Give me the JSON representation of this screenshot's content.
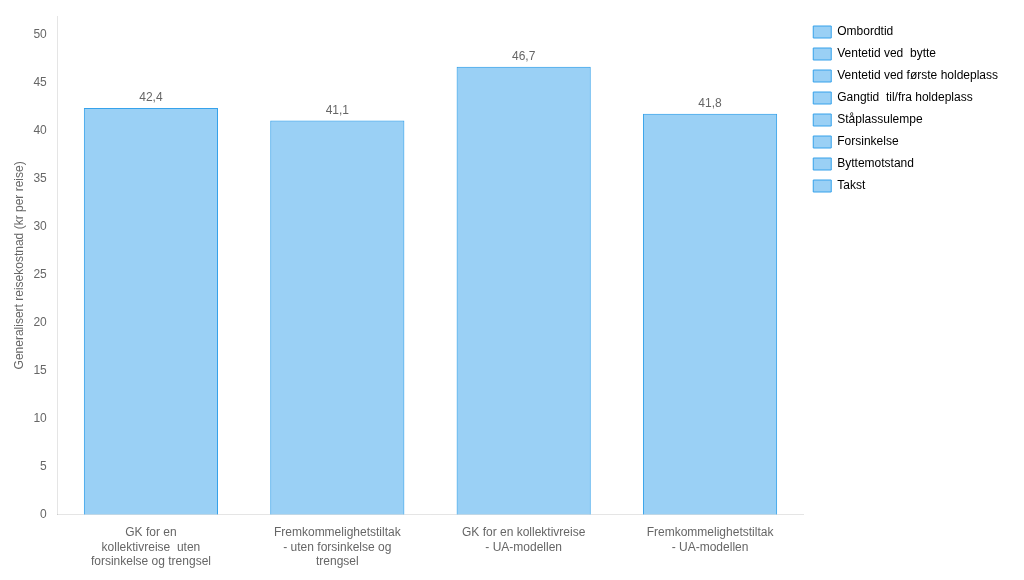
{
  "chart_data": {
    "type": "bar",
    "categories": [
      "GK for en\nkollektivreise  uten\nforsinkelse og trengsel",
      "Fremkommelighetstiltak\n- uten forsinkelse og\ntrengsel",
      "GK for en kollektivreise\n- UA-modellen",
      "Fremkommelighetstiltak\n- UA-modellen"
    ],
    "values": [
      42.4,
      41.1,
      46.7,
      41.8
    ],
    "value_labels": [
      "42,4",
      "41,1",
      "46,7",
      "41,8"
    ],
    "data_labels": true,
    "y_label": "Generalisert reisekostnad (kr per reise)",
    "ylim": [
      0,
      52
    ],
    "yticks": [
      0,
      5,
      10,
      15,
      20,
      25,
      30,
      35,
      40,
      45,
      50
    ],
    "grid": false,
    "legend": "right",
    "legend_entries": [
      "Ombordtid",
      "Ventetid ved  bytte",
      "Ventetid ved første holdeplass",
      "Gangtid  til/fra holdeplass",
      "Ståplassulempe",
      "Forsinkelse",
      "Byttemotstand",
      "Takst"
    ]
  }
}
